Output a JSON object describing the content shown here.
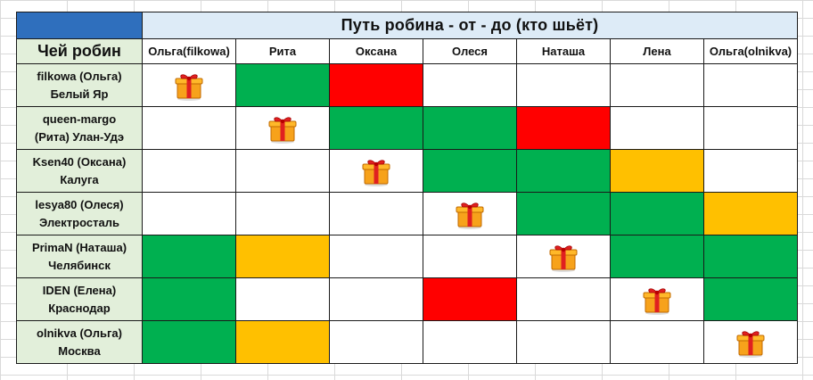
{
  "sheet": {
    "title": "Путь робина - от - до (кто шьёт)",
    "who_header": "Чей робин",
    "columns": [
      "Ольга(filkowa)",
      "Рита",
      "Оксана",
      "Олеся",
      "Наташа",
      "Лена",
      "Ольга(olnikva)"
    ],
    "rows": [
      {
        "label_line1": "filkowa (Ольга)",
        "label_line2": "Белый Яр",
        "cells": [
          "gift",
          "green",
          "red",
          "white",
          "white",
          "white",
          "white"
        ]
      },
      {
        "label_line1": "queen-margo",
        "label_line2": "(Рита) Улан-Удэ",
        "cells": [
          "white",
          "gift",
          "green",
          "green",
          "red",
          "white",
          "white"
        ]
      },
      {
        "label_line1": "Ksen40 (Оксана)",
        "label_line2": "Калуга",
        "cells": [
          "white",
          "white",
          "gift",
          "green",
          "green",
          "yellow",
          "white"
        ]
      },
      {
        "label_line1": "lesya80 (Олеся)",
        "label_line2": "Электросталь",
        "cells": [
          "white",
          "white",
          "white",
          "gift",
          "green",
          "green",
          "yellow"
        ]
      },
      {
        "label_line1": "PrimaN (Наташа)",
        "label_line2": "Челябинск",
        "cells": [
          "green",
          "yellow",
          "white",
          "white",
          "gift",
          "green",
          "green"
        ]
      },
      {
        "label_line1": "IDEN (Елена)",
        "label_line2": "Краснодар",
        "cells": [
          "green",
          "white",
          "white",
          "red",
          "white",
          "gift",
          "green"
        ]
      },
      {
        "label_line1": "olnikva (Ольга)",
        "label_line2": "Москва",
        "cells": [
          "green",
          "yellow",
          "white",
          "white",
          "white",
          "white",
          "gift"
        ]
      }
    ]
  },
  "colors": {
    "green": "#00b050",
    "red": "#ff0000",
    "yellow": "#ffc000",
    "header_blue": "#2f6fbd",
    "title_bg": "#ddebf7",
    "rowhead_bg": "#e2efda"
  },
  "icons": {
    "gift": "gift-box-icon"
  }
}
